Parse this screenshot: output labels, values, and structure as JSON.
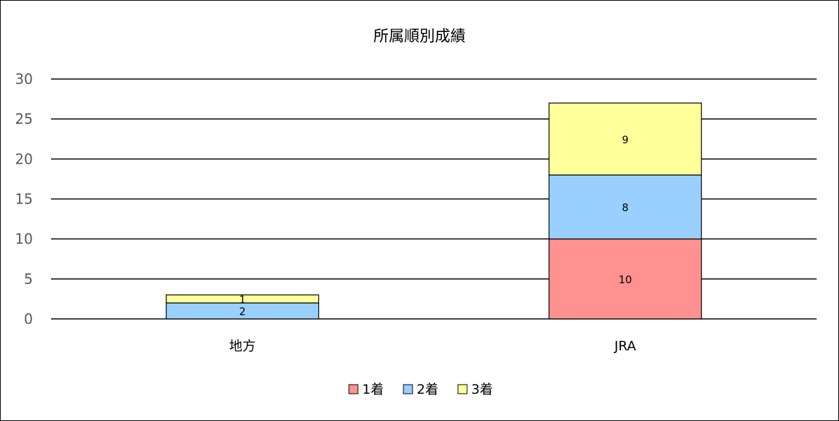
{
  "chart_data": {
    "type": "bar",
    "stacked": true,
    "title": "所属順別成績",
    "categories": [
      "地方",
      "JRA"
    ],
    "series": [
      {
        "name": "1着",
        "values": [
          0,
          10
        ],
        "labels": [
          "",
          "10"
        ],
        "color": "#ff9191"
      },
      {
        "name": "2着",
        "values": [
          2,
          8
        ],
        "labels": [
          "2",
          "8"
        ],
        "color": "#99d0ff"
      },
      {
        "name": "3着",
        "values": [
          1,
          9
        ],
        "labels": [
          "1",
          "9"
        ],
        "color": "#ffff99"
      }
    ],
    "ylim": [
      0,
      30
    ],
    "yticks": [
      "0",
      "5",
      "10",
      "15",
      "20",
      "25",
      "30"
    ],
    "grid": true,
    "legend_position": "bottom"
  }
}
